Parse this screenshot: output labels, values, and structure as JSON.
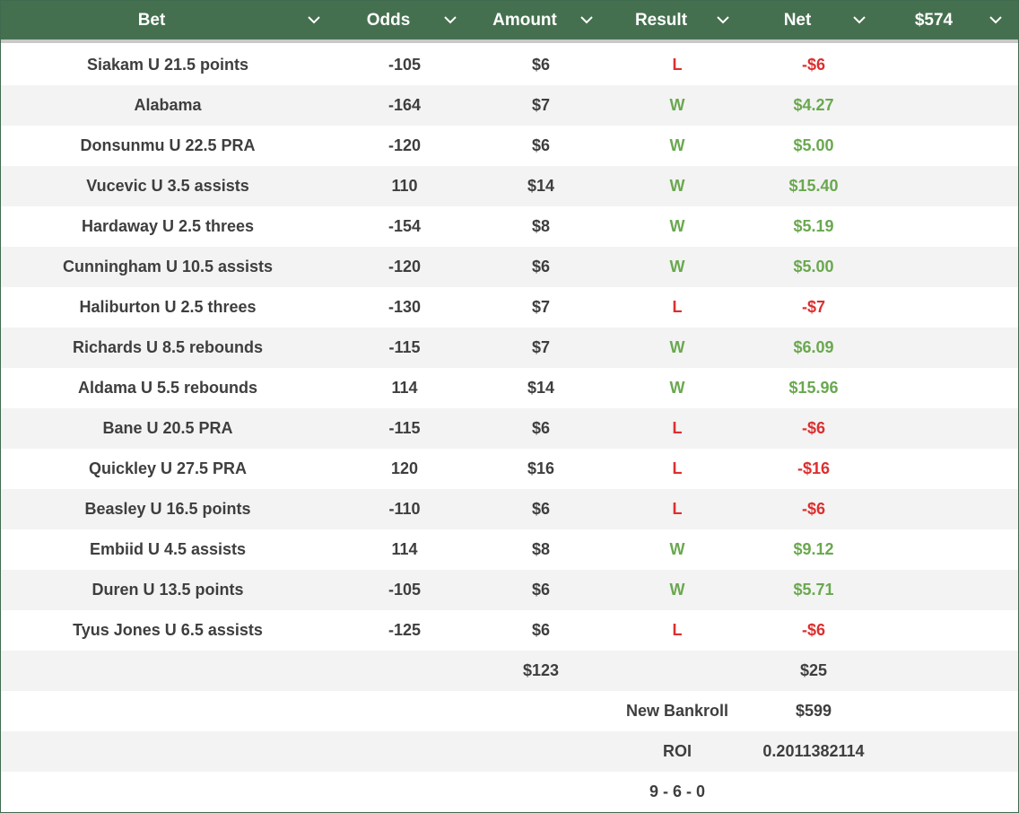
{
  "header": {
    "columns": [
      "Bet",
      "Odds",
      "Amount",
      "Result",
      "Net",
      "$574"
    ]
  },
  "bets": [
    {
      "bet": "Siakam U 21.5 points",
      "odds": "-105",
      "amount": "$6",
      "result": "L",
      "net": "-$6"
    },
    {
      "bet": "Alabama",
      "odds": "-164",
      "amount": "$7",
      "result": "W",
      "net": "$4.27"
    },
    {
      "bet": "Donsunmu U 22.5 PRA",
      "odds": "-120",
      "amount": "$6",
      "result": "W",
      "net": "$5.00"
    },
    {
      "bet": "Vucevic U 3.5 assists",
      "odds": "110",
      "amount": "$14",
      "result": "W",
      "net": "$15.40"
    },
    {
      "bet": "Hardaway U 2.5 threes",
      "odds": "-154",
      "amount": "$8",
      "result": "W",
      "net": "$5.19"
    },
    {
      "bet": "Cunningham U 10.5 assists",
      "odds": "-120",
      "amount": "$6",
      "result": "W",
      "net": "$5.00"
    },
    {
      "bet": "Haliburton U 2.5 threes",
      "odds": "-130",
      "amount": "$7",
      "result": "L",
      "net": "-$7"
    },
    {
      "bet": "Richards U 8.5 rebounds",
      "odds": "-115",
      "amount": "$7",
      "result": "W",
      "net": "$6.09"
    },
    {
      "bet": "Aldama U 5.5 rebounds",
      "odds": "114",
      "amount": "$14",
      "result": "W",
      "net": "$15.96"
    },
    {
      "bet": "Bane U 20.5 PRA",
      "odds": "-115",
      "amount": "$6",
      "result": "L",
      "net": "-$6"
    },
    {
      "bet": "Quickley U 27.5 PRA",
      "odds": "120",
      "amount": "$16",
      "result": "L",
      "net": "-$16"
    },
    {
      "bet": "Beasley U 16.5 points",
      "odds": "-110",
      "amount": "$6",
      "result": "L",
      "net": "-$6"
    },
    {
      "bet": "Embiid U 4.5 assists",
      "odds": "114",
      "amount": "$8",
      "result": "W",
      "net": "$9.12"
    },
    {
      "bet": "Duren U 13.5 points",
      "odds": "-105",
      "amount": "$6",
      "result": "W",
      "net": "$5.71"
    },
    {
      "bet": "Tyus Jones U 6.5 assists",
      "odds": "-125",
      "amount": "$6",
      "result": "L",
      "net": "-$6"
    }
  ],
  "summary": {
    "total_amount": "$123",
    "total_net": "$25",
    "bankroll_label": "New Bankroll",
    "bankroll_value": "$599",
    "roi_label": "ROI",
    "roi_value": "0.2011382114",
    "record": "9 - 6 - 0"
  },
  "colors": {
    "header_bg": "#45704f",
    "win": "#6aa84f",
    "loss": "#dc2f2f"
  },
  "icons": {
    "header_dropdown": "chevron-down-icon"
  }
}
